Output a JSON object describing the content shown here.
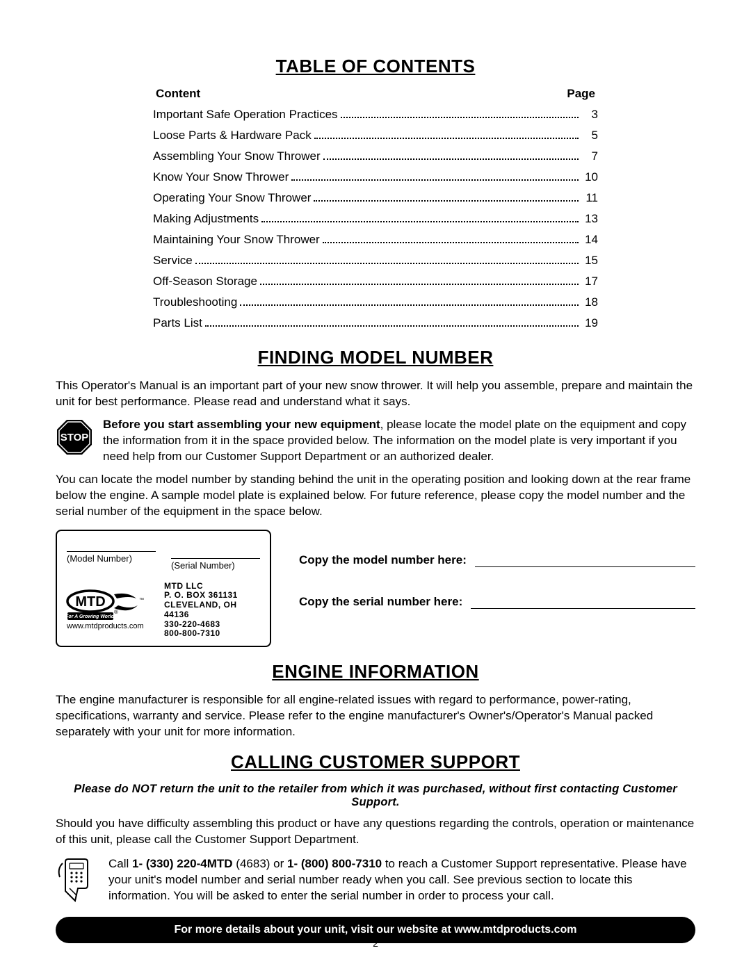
{
  "toc": {
    "title": "TABLE OF CONTENTS",
    "header_content": "Content",
    "header_page": "Page",
    "items": [
      {
        "label": "Important Safe Operation Practices",
        "page": "3"
      },
      {
        "label": "Loose Parts & Hardware Pack",
        "page": "5"
      },
      {
        "label": "Assembling Your Snow Thrower",
        "page": "7"
      },
      {
        "label": "Know Your Snow Thrower",
        "page": "10"
      },
      {
        "label": "Operating Your Snow Thrower",
        "page": "11"
      },
      {
        "label": "Making Adjustments",
        "page": "13"
      },
      {
        "label": "Maintaining Your Snow Thrower",
        "page": "14"
      },
      {
        "label": "Service",
        "page": "15"
      },
      {
        "label": "Off-Season Storage",
        "page": "17"
      },
      {
        "label": "Troubleshooting",
        "page": "18"
      },
      {
        "label": "Parts List",
        "page": "19"
      }
    ]
  },
  "finding": {
    "title": "FINDING MODEL NUMBER",
    "intro": "This Operator's Manual is an important part of your new snow thrower. It will help you assemble, prepare and maintain the unit for best performance. Please read and understand what it says.",
    "stop_bold": "Before you start assembling your new equipment",
    "stop_rest": ", please locate the model plate on the equipment and copy the information from it in the space provided below. The information on the model plate is very important if you need help from our Customer Support Department or an authorized dealer.",
    "locate": "You can locate the model number by standing behind the unit in the operating position and looking down at the rear frame below the engine. A sample model plate is explained below. For future reference, please copy the model number and the serial number of the equipment in the space below.",
    "model_plate": {
      "model_label": "(Model Number)",
      "serial_label": "(Serial Number)",
      "company": "MTD LLC",
      "addr1": "P. O. BOX 361131",
      "addr2": "CLEVELAND, OH 44136",
      "phone1": "330-220-4683",
      "phone2": "800-800-7310",
      "url": "www.mtdproducts.com",
      "tagline": "For A Growing World."
    },
    "copy_model": "Copy the model number here:",
    "copy_serial": "Copy the serial number here:"
  },
  "engine": {
    "title": "ENGINE INFORMATION",
    "text": "The engine manufacturer is responsible for all engine-related issues with regard to performance, power-rating, specifications, warranty and service. Please refer to the engine manufacturer's Owner's/Operator's Manual packed separately with your unit for more information."
  },
  "support": {
    "title": "CALLING CUSTOMER SUPPORT",
    "warning": "Please do NOT return the unit to the retailer from which it was purchased, without first contacting Customer Support.",
    "intro": "Should you have difficulty assembling this product or have any questions regarding the controls, operation or maintenance of this unit, please call the Customer Support Department.",
    "call_prefix": "Call ",
    "phone1": "1- (330) 220-4MTD",
    "phone1_paren": " (4683) or ",
    "phone2": "1- (800) 800-7310",
    "call_suffix": " to reach a Customer Support representative. Please have your unit's model number and serial number ready when you call. See previous section to locate this information. You will be asked to enter the serial number in order to process your call.",
    "bar": "For more details about your unit, visit our website at www.mtdproducts.com"
  },
  "stop_word": "STOP",
  "page_number": "2"
}
